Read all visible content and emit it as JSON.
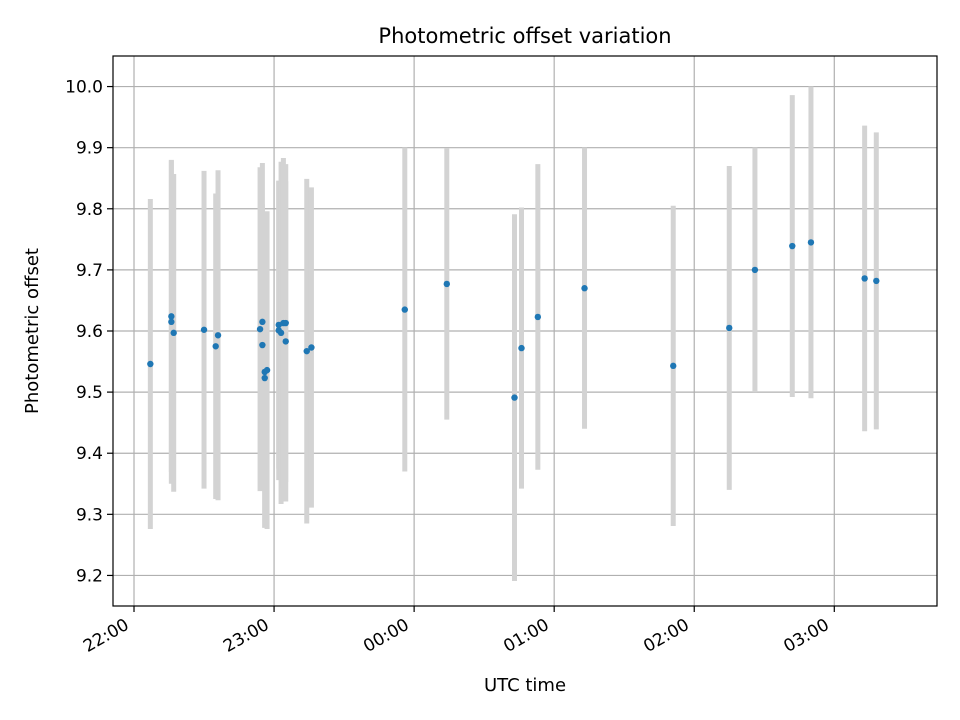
{
  "chart_data": {
    "type": "scatter",
    "title": "Photometric offset variation",
    "xlabel": "UTC time",
    "ylabel": "Photometric offset",
    "x_tick_labels": [
      "22:00",
      "23:00",
      "00:00",
      "01:00",
      "02:00",
      "03:00"
    ],
    "y_ticks": [
      9.2,
      9.3,
      9.4,
      9.5,
      9.6,
      9.7,
      9.8,
      9.9,
      10.0
    ],
    "y_tick_labels": [
      "9.2",
      "9.3",
      "9.4",
      "9.5",
      "9.6",
      "9.7",
      "9.8",
      "9.9",
      "10.0"
    ],
    "xlim": [
      "21:51",
      "03:44"
    ],
    "ylim": [
      9.15,
      10.05
    ],
    "grid": true,
    "colors": {
      "point": "#1f77b4",
      "errorbar": "#d3d3d3",
      "grid": "#b0b0b0"
    },
    "points": [
      {
        "x": "22:07",
        "y": 9.546,
        "yerr": 0.27
      },
      {
        "x": "22:16",
        "y": 9.624,
        "yerr": 0.255
      },
      {
        "x": "22:16",
        "y": 9.615,
        "yerr": 0.265
      },
      {
        "x": "22:17",
        "y": 9.597,
        "yerr": 0.26
      },
      {
        "x": "22:30",
        "y": 9.602,
        "yerr": 0.26
      },
      {
        "x": "22:35",
        "y": 9.575,
        "yerr": 0.25
      },
      {
        "x": "22:36",
        "y": 9.593,
        "yerr": 0.27
      },
      {
        "x": "22:54",
        "y": 9.603,
        "yerr": 0.265
      },
      {
        "x": "22:55",
        "y": 9.615,
        "yerr": 0.26
      },
      {
        "x": "22:55",
        "y": 9.577,
        "yerr": 0.23
      },
      {
        "x": "22:56",
        "y": 9.523,
        "yerr": 0.245
      },
      {
        "x": "22:56",
        "y": 9.533,
        "yerr": 0.255
      },
      {
        "x": "22:57",
        "y": 9.536,
        "yerr": 0.26
      },
      {
        "x": "23:02",
        "y": 9.61,
        "yerr": 0.235
      },
      {
        "x": "23:02",
        "y": 9.601,
        "yerr": 0.245
      },
      {
        "x": "23:03",
        "y": 9.597,
        "yerr": 0.28
      },
      {
        "x": "23:04",
        "y": 9.613,
        "yerr": 0.27
      },
      {
        "x": "23:05",
        "y": 9.613,
        "yerr": 0.26
      },
      {
        "x": "23:05",
        "y": 9.583,
        "yerr": 0.262
      },
      {
        "x": "23:14",
        "y": 9.567,
        "yerr": 0.282
      },
      {
        "x": "23:16",
        "y": 9.573,
        "yerr": 0.262
      },
      {
        "x": "23:56",
        "y": 9.635,
        "yerr": 0.265
      },
      {
        "x": "00:14",
        "y": 9.677,
        "yerr": 0.222
      },
      {
        "x": "00:43",
        "y": 9.491,
        "yerr": 0.3
      },
      {
        "x": "00:46",
        "y": 9.572,
        "yerr": 0.23
      },
      {
        "x": "00:53",
        "y": 9.623,
        "yerr": 0.25
      },
      {
        "x": "01:13",
        "y": 9.67,
        "yerr": 0.23
      },
      {
        "x": "01:51",
        "y": 9.543,
        "yerr": 0.262
      },
      {
        "x": "02:15",
        "y": 9.605,
        "yerr": 0.265
      },
      {
        "x": "02:26",
        "y": 9.7,
        "yerr": 0.2
      },
      {
        "x": "02:42",
        "y": 9.739,
        "yerr": 0.247
      },
      {
        "x": "02:50",
        "y": 9.745,
        "yerr": 0.255
      },
      {
        "x": "03:13",
        "y": 9.686,
        "yerr": 0.25
      },
      {
        "x": "03:18",
        "y": 9.682,
        "yerr": 0.243
      }
    ]
  }
}
